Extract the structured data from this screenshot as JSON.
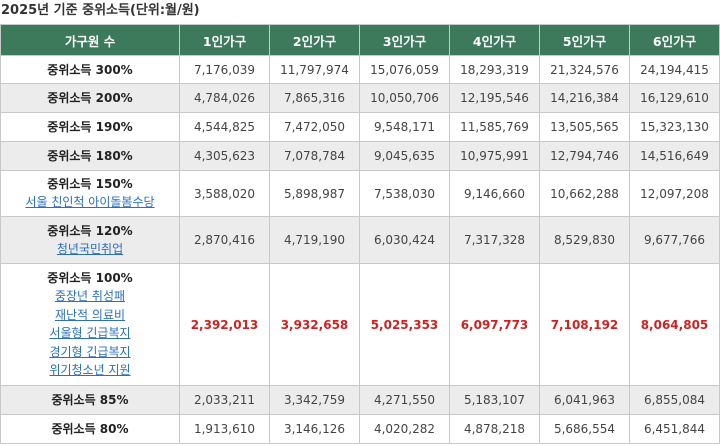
{
  "title": "2025년 기준 중위소득(단위:월/원)",
  "colors": {
    "header_bg": "#3c7a5b",
    "highlight": "#d41f1f",
    "link": "#2a6fc2",
    "shade": "#ececec"
  },
  "headers": [
    "가구원 수",
    "1인가구",
    "2인가구",
    "3인가구",
    "4인가구",
    "5인가구",
    "6인가구"
  ],
  "rows": [
    {
      "label": "중위소득 300%",
      "links": [],
      "values": [
        "7,176,039",
        "11,797,974",
        "15,076,059",
        "18,293,319",
        "21,324,576",
        "24,194,415"
      ]
    },
    {
      "label": "중위소득 200%",
      "links": [],
      "values": [
        "4,784,026",
        "7,865,316",
        "10,050,706",
        "12,195,546",
        "14,216,384",
        "16,129,610"
      ]
    },
    {
      "label": "중위소득 190%",
      "links": [],
      "values": [
        "4,544,825",
        "7,472,050",
        "9,548,171",
        "11,585,769",
        "13,505,565",
        "15,323,130"
      ]
    },
    {
      "label": "중위소득 180%",
      "links": [],
      "values": [
        "4,305,623",
        "7,078,784",
        "9,045,635",
        "10,975,991",
        "12,794,746",
        "14,516,649"
      ]
    },
    {
      "label": "중위소득 150%",
      "links": [
        "서울 친인척 아이돌봄수당"
      ],
      "values": [
        "3,588,020",
        "5,898,987",
        "7,538,030",
        "9,146,660",
        "10,662,288",
        "12,097,208"
      ]
    },
    {
      "label": "중위소득 120%",
      "links": [
        "청년국민취업"
      ],
      "values": [
        "2,870,416",
        "4,719,190",
        "6,030,424",
        "7,317,328",
        "8,529,830",
        "9,677,766"
      ]
    },
    {
      "label": "중위소득 100%",
      "links": [
        "중장년 취성패",
        "재난적 의료비",
        "서울형 긴급복지",
        "경기형 긴급복지",
        "위기청소년 지원"
      ],
      "values": [
        "2,392,013",
        "3,932,658",
        "5,025,353",
        "6,097,773",
        "7,108,192",
        "8,064,805"
      ]
    },
    {
      "label": "중위소득 85%",
      "links": [],
      "values": [
        "2,033,211",
        "3,342,759",
        "4,271,550",
        "5,183,107",
        "6,041,963",
        "6,855,084"
      ]
    },
    {
      "label": "중위소득 80%",
      "links": [],
      "values": [
        "1,913,610",
        "3,146,126",
        "4,020,282",
        "4,878,218",
        "5,686,554",
        "6,451,844"
      ]
    }
  ]
}
